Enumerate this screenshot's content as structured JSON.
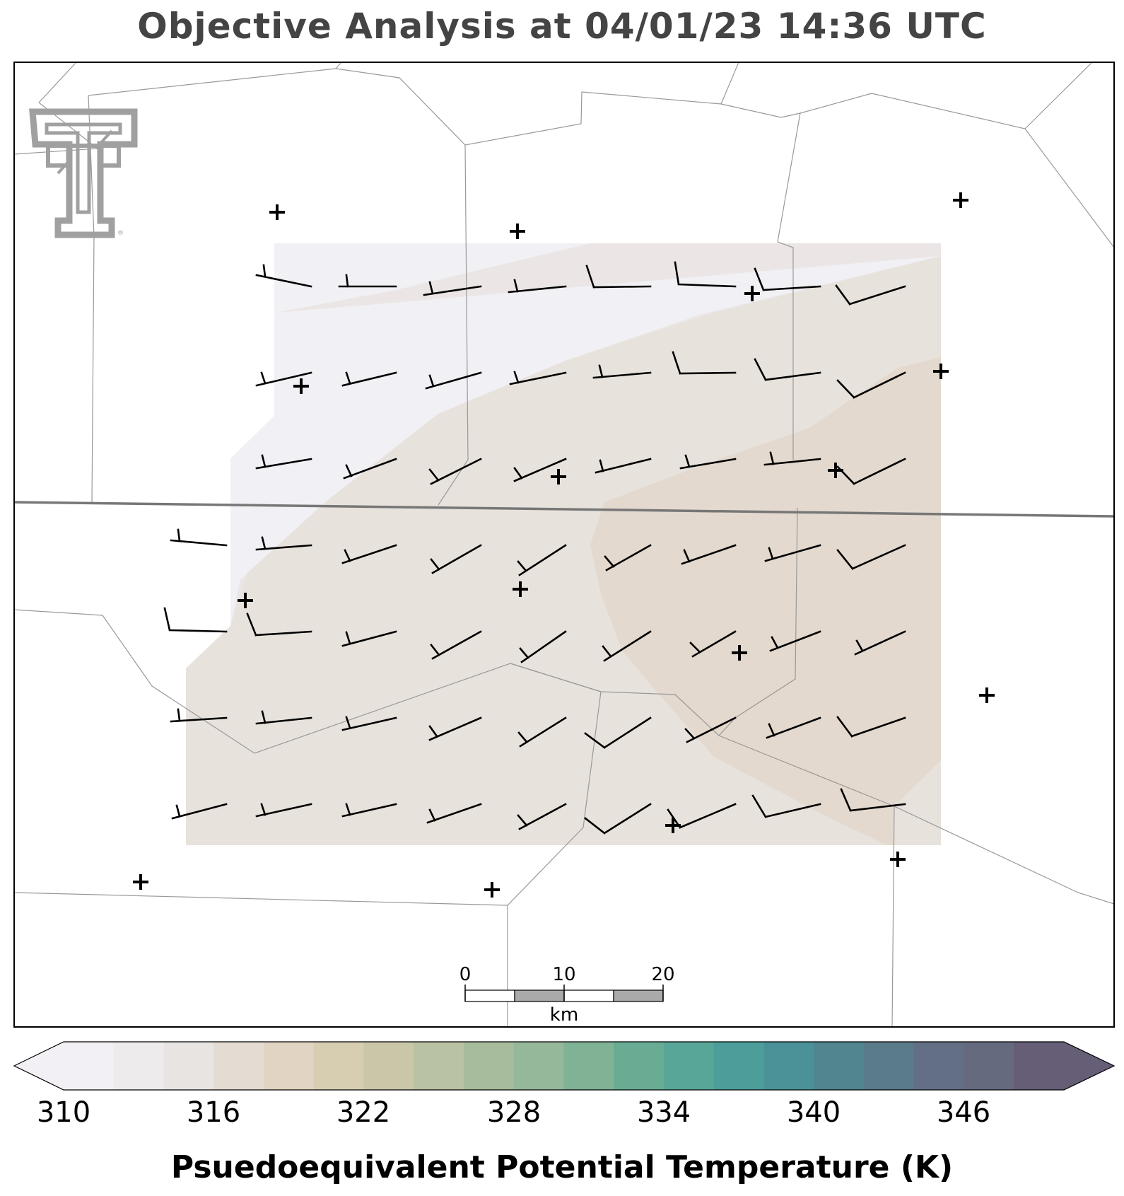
{
  "title": "Objective Analysis at 04/01/23 14:36 UTC",
  "colorbar": {
    "label": "Psuedoequivalent Potential Temperature (K)",
    "tick_labels": [
      "310",
      "316",
      "322",
      "328",
      "334",
      "340",
      "346"
    ],
    "colors": [
      "#f2f0f5",
      "#eeebec",
      "#e8e4e2",
      "#e4dbd3",
      "#e2d4c2",
      "#d7ceb2",
      "#c9c7a8",
      "#b9c2a3",
      "#a6bc9d",
      "#95b89a",
      "#80b295",
      "#68ac94",
      "#58a697",
      "#4d9e9a",
      "#4a9198",
      "#51858f",
      "#5a7b8a",
      "#626f84",
      "#666a7f",
      "#655e76"
    ],
    "extend_under_color": "#f2f0f5",
    "extend_over_color": "#655e76"
  },
  "scale_bar": {
    "labels": [
      "0",
      "10",
      "20"
    ],
    "unit": "km"
  },
  "logo": {
    "text": "TT",
    "icon": "texas-tech-double-t-logo"
  },
  "analysis_colors": {
    "band_310": "#f1f0f4",
    "band_313": "#ebe6e5",
    "band_316": "#e8e2dc",
    "band_317": "#e3d9ce"
  },
  "station_marker_icon": "plus-icon",
  "wind_barb_icon": "wind-barb-icon"
}
